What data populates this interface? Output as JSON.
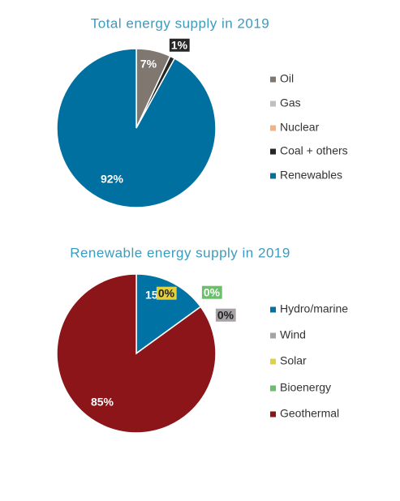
{
  "chart_data": [
    {
      "type": "pie",
      "title": "Total energy supply in 2019",
      "categories": [
        "Oil",
        "Gas",
        "Nuclear",
        "Coal + others",
        "Renewables"
      ],
      "values": [
        7,
        0,
        0,
        1,
        92
      ],
      "value_labels": [
        "7%",
        null,
        null,
        "1%",
        "92%"
      ],
      "colors": [
        "#7f7770",
        "#bfbfbf",
        "#f4b183",
        "#262626",
        "#0070a0"
      ],
      "legend": "right"
    },
    {
      "type": "pie",
      "title": "Renewable energy supply in 2019",
      "categories": [
        "Hydro/marine",
        "Wind",
        "Solar",
        "Bioenergy",
        "Geothermal"
      ],
      "values": [
        15,
        0,
        0,
        0,
        85
      ],
      "value_labels": [
        "15%",
        "0%",
        "0%",
        "0%",
        "85%"
      ],
      "colors": [
        "#0072a3",
        "#a6a2a6",
        "#e2d13c",
        "#6abf69",
        "#8b1518"
      ],
      "legend": "right"
    }
  ]
}
